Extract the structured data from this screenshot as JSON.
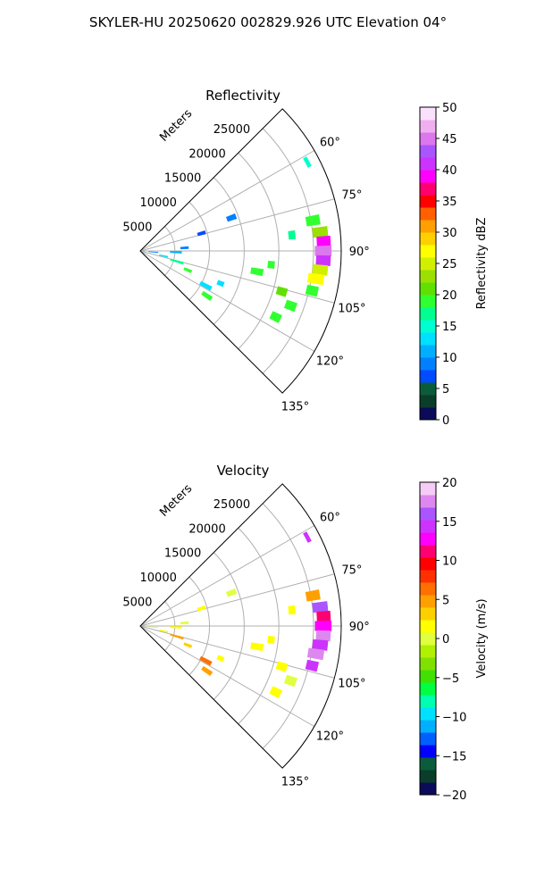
{
  "figure": {
    "title": "SKYLER-HU  20250620  002829.926 UTC Elevation 04°"
  },
  "chart_data": [
    {
      "type": "heatmap",
      "title": "Reflectivity",
      "range_label": "Meters",
      "range_ticks": [
        5000,
        10000,
        15000,
        20000,
        25000
      ],
      "range_max": 29000,
      "azimuth_ticks_deg": [
        60,
        75,
        90,
        105,
        120,
        135
      ],
      "azimuth_limits_deg": [
        45,
        135
      ],
      "grid": true,
      "colorbar": {
        "label": "Reflectivity dBZ",
        "min": 0,
        "max": 50,
        "ticks": [
          0,
          5,
          10,
          15,
          20,
          25,
          30,
          35,
          40,
          45,
          50
        ],
        "colors": [
          "#0b0b5a",
          "#0a3d2a",
          "#0b5c3a",
          "#004bff",
          "#0080ff",
          "#00b0ff",
          "#00e0ff",
          "#00ffd0",
          "#00ff90",
          "#30ff30",
          "#60e000",
          "#9be000",
          "#d0f000",
          "#ffff00",
          "#ffd000",
          "#ffa000",
          "#ff6000",
          "#ff0000",
          "#ff0070",
          "#ff00ff",
          "#cc33ff",
          "#aa55ff",
          "#dd77ee",
          "#f0b0f0",
          "#fbe0fb"
        ]
      },
      "echoes": [
        {
          "az": 80,
          "r0": 24300,
          "r1": 26300,
          "value": 18
        },
        {
          "az": 84,
          "r0": 25000,
          "r1": 27200,
          "value": 22
        },
        {
          "az": 87,
          "r0": 25500,
          "r1": 27500,
          "value": 38
        },
        {
          "az": 90,
          "r0": 25200,
          "r1": 27600,
          "value": 45
        },
        {
          "az": 93,
          "r0": 25400,
          "r1": 27500,
          "value": 40
        },
        {
          "az": 96,
          "r0": 25000,
          "r1": 27200,
          "value": 24
        },
        {
          "az": 99,
          "r0": 24500,
          "r1": 26800,
          "value": 26
        },
        {
          "az": 103,
          "r0": 24600,
          "r1": 26300,
          "value": 18
        },
        {
          "az": 84,
          "r0": 21500,
          "r1": 22500,
          "value": 17
        },
        {
          "az": 96,
          "r0": 18500,
          "r1": 19500,
          "value": 18
        },
        {
          "az": 100,
          "r0": 16200,
          "r1": 18000,
          "value": 19
        },
        {
          "az": 106,
          "r0": 20500,
          "r1": 22000,
          "value": 20
        },
        {
          "az": 110,
          "r0": 22300,
          "r1": 23900,
          "value": 18
        },
        {
          "az": 116,
          "r0": 21000,
          "r1": 22500,
          "value": 19
        },
        {
          "az": 70,
          "r0": 13300,
          "r1": 14700,
          "value": 8
        },
        {
          "az": 74,
          "r0": 8600,
          "r1": 9800,
          "value": 6
        },
        {
          "az": 86,
          "r0": 5800,
          "r1": 7000,
          "value": 9
        },
        {
          "az": 92,
          "r0": 4300,
          "r1": 6000,
          "value": 10
        },
        {
          "az": 95,
          "r0": 1200,
          "r1": 2600,
          "value": 8
        },
        {
          "az": 102,
          "r0": 2800,
          "r1": 4100,
          "value": 12
        },
        {
          "az": 106,
          "r0": 4500,
          "r1": 6500,
          "value": 16
        },
        {
          "az": 112,
          "r0": 6800,
          "r1": 8000,
          "value": 19
        },
        {
          "az": 118,
          "r0": 9800,
          "r1": 11600,
          "value": 12
        },
        {
          "az": 124,
          "r0": 10800,
          "r1": 12400,
          "value": 18
        },
        {
          "az": 112,
          "r0": 12000,
          "r1": 13000,
          "value": 12
        },
        {
          "az": 62,
          "r0": 27000,
          "r1": 27600,
          "value": 15
        }
      ]
    },
    {
      "type": "heatmap",
      "title": "Velocity",
      "range_label": "Meters",
      "range_ticks": [
        5000,
        10000,
        15000,
        20000,
        25000
      ],
      "range_max": 29000,
      "azimuth_ticks_deg": [
        60,
        75,
        90,
        105,
        120,
        135
      ],
      "azimuth_limits_deg": [
        45,
        135
      ],
      "grid": true,
      "colorbar": {
        "label": "Velocity (m/s)",
        "min": -20,
        "max": 20,
        "ticks": [
          -20,
          -15,
          -10,
          -5,
          0,
          5,
          10,
          15,
          20
        ],
        "colors": [
          "#0b0b5a",
          "#0a3d2a",
          "#0b5c3a",
          "#0000ff",
          "#0060ff",
          "#00b0ff",
          "#00e0ff",
          "#00ffb0",
          "#00ff40",
          "#40e000",
          "#80e000",
          "#b0f000",
          "#e0ff40",
          "#ffff00",
          "#ffd000",
          "#ffa000",
          "#ff7000",
          "#ff3000",
          "#ff0000",
          "#ff0070",
          "#ff00ff",
          "#cc33ff",
          "#aa55ff",
          "#dd88ee",
          "#f5ccf5"
        ]
      },
      "echoes": [
        {
          "az": 80,
          "r0": 24300,
          "r1": 26300,
          "value": 4
        },
        {
          "az": 84,
          "r0": 25000,
          "r1": 27200,
          "value": 16
        },
        {
          "az": 87,
          "r0": 25500,
          "r1": 27500,
          "value": 11
        },
        {
          "az": 90,
          "r0": 25200,
          "r1": 27600,
          "value": 13
        },
        {
          "az": 93,
          "r0": 25400,
          "r1": 27500,
          "value": 17
        },
        {
          "az": 96,
          "r0": 25000,
          "r1": 27200,
          "value": 15
        },
        {
          "az": 99,
          "r0": 24500,
          "r1": 26800,
          "value": 18
        },
        {
          "az": 103,
          "r0": 24600,
          "r1": 26300,
          "value": 15
        },
        {
          "az": 84,
          "r0": 21500,
          "r1": 22500,
          "value": 2
        },
        {
          "az": 96,
          "r0": 18500,
          "r1": 19500,
          "value": 1
        },
        {
          "az": 100,
          "r0": 16200,
          "r1": 18000,
          "value": 2
        },
        {
          "az": 106,
          "r0": 20500,
          "r1": 22000,
          "value": 1
        },
        {
          "az": 110,
          "r0": 22300,
          "r1": 23900,
          "value": 0
        },
        {
          "az": 116,
          "r0": 21000,
          "r1": 22500,
          "value": 1
        },
        {
          "az": 70,
          "r0": 13300,
          "r1": 14700,
          "value": 0
        },
        {
          "az": 74,
          "r0": 8600,
          "r1": 9800,
          "value": 1
        },
        {
          "az": 86,
          "r0": 5800,
          "r1": 7000,
          "value": 0
        },
        {
          "az": 92,
          "r0": 4300,
          "r1": 6000,
          "value": 1
        },
        {
          "az": 95,
          "r0": 1200,
          "r1": 2600,
          "value": 0
        },
        {
          "az": 102,
          "r0": 2800,
          "r1": 4100,
          "value": 2
        },
        {
          "az": 106,
          "r0": 4500,
          "r1": 6500,
          "value": 4
        },
        {
          "az": 112,
          "r0": 6800,
          "r1": 8000,
          "value": 3
        },
        {
          "az": 118,
          "r0": 9800,
          "r1": 11600,
          "value": 7
        },
        {
          "az": 124,
          "r0": 10800,
          "r1": 12400,
          "value": 4
        },
        {
          "az": 112,
          "r0": 12000,
          "r1": 13000,
          "value": 1
        },
        {
          "az": 62,
          "r0": 27000,
          "r1": 27600,
          "value": 14
        }
      ]
    }
  ]
}
